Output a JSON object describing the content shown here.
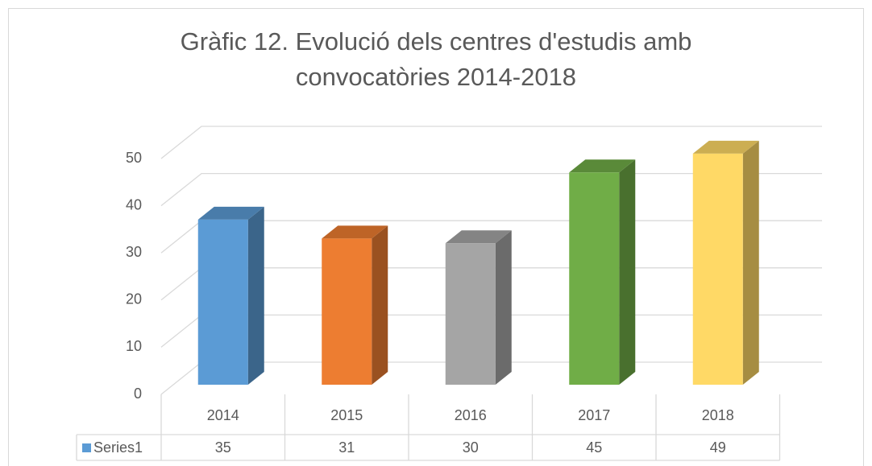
{
  "chart_data": {
    "type": "bar3d",
    "title": "Gràfic 12. Evolució dels centres d'estudis amb convocatòries 2014-2018",
    "categories": [
      "2014",
      "2015",
      "2016",
      "2017",
      "2018"
    ],
    "series": [
      {
        "name": "Series1",
        "color": "#5b9bd5",
        "point_colors": [
          "#5b9bd5",
          "#ed7d31",
          "#a5a5a5",
          "#70ad47",
          "#ffd966"
        ],
        "values": [
          35,
          31,
          30,
          45,
          49
        ]
      }
    ],
    "ylim": [
      0,
      50
    ],
    "yticks": [
      0,
      10,
      20,
      30,
      40,
      50
    ],
    "grid": true,
    "data_table": true
  }
}
